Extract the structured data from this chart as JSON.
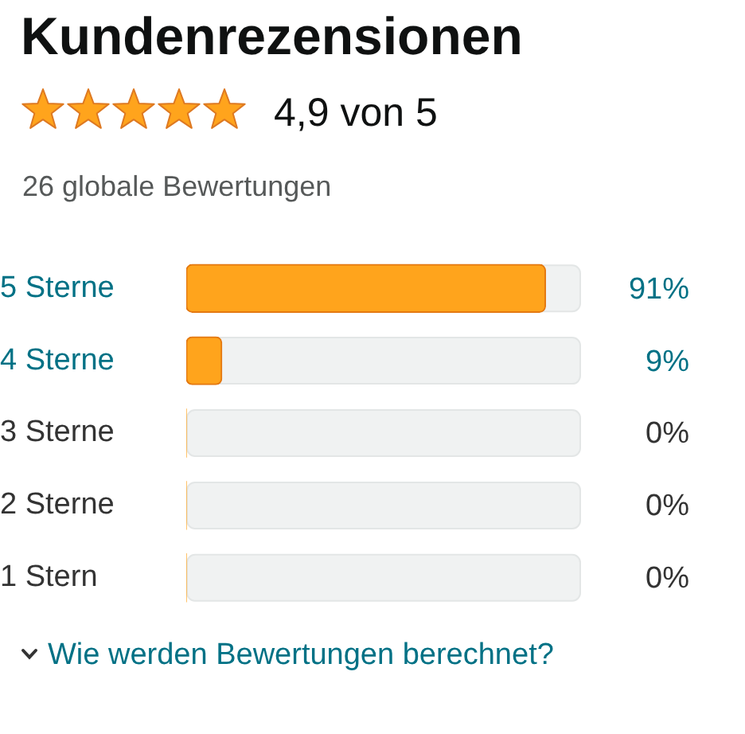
{
  "chart_data": {
    "type": "bar",
    "orientation": "horizontal",
    "title": "Kundenrezensionen",
    "annotations": [
      "4,9 von 5",
      "26 globale Bewertungen",
      "Wie werden Bewertungen berechnet?"
    ],
    "categories": [
      "5 Sterne",
      "4 Sterne",
      "3 Sterne",
      "2 Sterne",
      "1 Stern"
    ],
    "values": [
      91,
      9,
      0,
      0,
      0
    ],
    "value_labels": [
      "91%",
      "9%",
      "0%",
      "0%",
      "0%"
    ],
    "color": "#ffa41c",
    "xlim": [
      0,
      100
    ],
    "tick_labels": "y"
  }
}
